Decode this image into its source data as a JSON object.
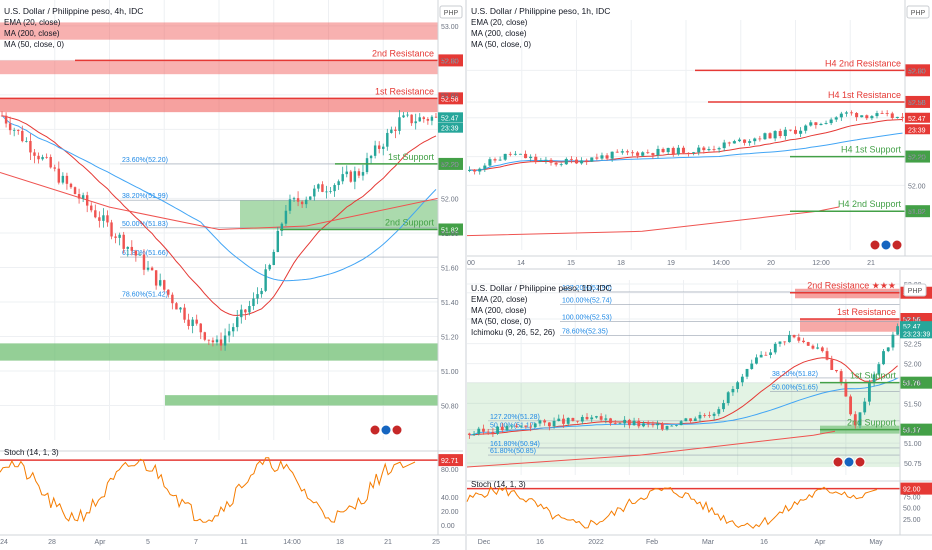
{
  "colors": {
    "resistance": "#e53935",
    "resistance_zone": "#ef5350",
    "support": "#43a047",
    "support_zone": "#66bb6a",
    "ema": "#e53935",
    "ma200": "#ef5350",
    "ma50": "#42a5f5",
    "stoch": "#f57c00",
    "candle_up": "#26a69a",
    "candle_down": "#ef5350",
    "grid": "#eef0f3",
    "fib_text": "#1e88e5"
  },
  "panels": [
    {
      "title": "U.S. Dollar / Philippine peso, 4h, IDC",
      "indicators": [
        "EMA (20, close)",
        "MA (200, close)",
        "MA (50, close, 0)"
      ],
      "currency": "PHP",
      "chart_data": {
        "type": "candlestick",
        "ylim": [
          50.6,
          53.15
        ],
        "y_ticks": [
          "53.00",
          "52.80",
          "52.60",
          "52.40",
          "52.20",
          "52.00",
          "51.80",
          "51.60",
          "51.40",
          "51.20",
          "51.00",
          "50.80"
        ],
        "x_ticks": [
          "24",
          "28",
          "Apr",
          "5",
          "7",
          "11",
          "14:00",
          "18",
          "21",
          "25"
        ],
        "n_bars": 108,
        "last_close": 52.47,
        "levels": [
          {
            "label": "2nd Resistance",
            "value": 52.8,
            "tag": "52.80",
            "kind": "resistance"
          },
          {
            "label": "1st Resistance",
            "value": 52.58,
            "tag": "52.58",
            "kind": "resistance"
          },
          {
            "label": "1st Support",
            "value": 52.2,
            "tag": "52.20",
            "kind": "support"
          },
          {
            "label": "2nd Support",
            "value": 51.82,
            "tag": "51.82",
            "kind": "support"
          }
        ],
        "fib_levels": [
          {
            "label": "23.60%(52.20)",
            "value": 52.2
          },
          {
            "label": "38.20%(51.99)",
            "value": 51.99
          },
          {
            "label": "50.00%(51.83)",
            "value": 51.83
          },
          {
            "label": "61.80%(51.66)",
            "value": 51.66
          },
          {
            "label": "78.60%(51.42)",
            "value": 51.42
          }
        ],
        "price_tags": [
          {
            "text": "52.47",
            "value": 52.47,
            "color": "#26a69a"
          },
          {
            "text": "23:39",
            "value": 52.41,
            "color": "#26a69a"
          }
        ],
        "stoch": {
          "label": "Stoch (14, 1, 3)",
          "ylim": [
            0,
            100
          ],
          "y_ticks": [
            "92.71",
            "80.00",
            "40.00",
            "20.00",
            "0.00"
          ],
          "level_tag": "92.71"
        }
      }
    },
    {
      "title": "U.S. Dollar / Philippine peso, 1h, IDC",
      "indicators": [
        "EMA (20, close)",
        "MA (200, close)",
        "MA (50, close, 0)"
      ],
      "currency": "PHP",
      "chart_data": {
        "type": "candlestick",
        "ylim": [
          51.55,
          53.15
        ],
        "y_ticks": [
          "52.80",
          "52.58",
          "52.47",
          "52.20",
          "52.00",
          "51.82"
        ],
        "x_ticks": [
          "00",
          "14",
          "15",
          "18",
          "19",
          "14:00",
          "20",
          "12:00",
          "21"
        ],
        "n_bars": 86,
        "last_close": 52.47,
        "levels": [
          {
            "label": "H4 2nd Resistance",
            "value": 52.8,
            "tag": "52.80",
            "kind": "resistance"
          },
          {
            "label": "H4 1st Resistance",
            "value": 52.58,
            "tag": "52.58",
            "kind": "resistance"
          },
          {
            "label": "H4 1st Support",
            "value": 52.2,
            "tag": "52.20",
            "kind": "support"
          },
          {
            "label": "H4 2nd Support",
            "value": 51.82,
            "tag": "51.82",
            "kind": "support"
          }
        ],
        "price_tags": [
          {
            "text": "52.47",
            "value": 52.47,
            "color": "#e53935"
          },
          {
            "text": "23:39",
            "value": 52.39,
            "color": "#e53935"
          }
        ]
      }
    },
    {
      "title": "U.S. Dollar / Philippine peso, 1D, IDC",
      "indicators": [
        "EMA (20, close)",
        "MA (200, close)",
        "MA (50, close, 0)",
        "Ichimoku (9, 26, 52, 26)"
      ],
      "currency": "PHP",
      "chart_data": {
        "type": "candlestick",
        "ylim": [
          50.6,
          53.05
        ],
        "y_ticks": [
          "53.00",
          "52.89",
          "52.56",
          "52.25",
          "52.00",
          "51.76",
          "51.50",
          "51.17",
          "51.00",
          "50.75"
        ],
        "x_ticks": [
          "Dec",
          "16",
          "2022",
          "Feb",
          "Mar",
          "16",
          "Apr",
          "May"
        ],
        "n_bars": 92,
        "last_close": 52.47,
        "levels": [
          {
            "label": "2nd Resistance ★★★",
            "value": 52.89,
            "tag": "52.89",
            "kind": "resistance"
          },
          {
            "label": "1st Resistance",
            "value": 52.56,
            "tag": "52.56",
            "kind": "resistance"
          },
          {
            "label": "1st Support",
            "value": 51.76,
            "tag": "51.76",
            "kind": "support"
          },
          {
            "label": "2nd Support",
            "value": 51.17,
            "tag": "51.17",
            "kind": "support"
          }
        ],
        "fib_levels": [
          {
            "label": "127.20%(52.90)",
            "value": 52.9
          },
          {
            "label": "100.00%(52.74)",
            "value": 52.74
          },
          {
            "label": "100.00%(52.53)",
            "value": 52.53
          },
          {
            "label": "78.60%(52.35)",
            "value": 52.35
          },
          {
            "label": "38.20%(51.82)",
            "value": 51.82
          },
          {
            "label": "50.00%(51.65)",
            "value": 51.65
          },
          {
            "label": "127.20%(51.28)",
            "value": 51.28
          },
          {
            "label": "50.00%(51.17)",
            "value": 51.17
          },
          {
            "label": "161.80%(50.94)",
            "value": 50.94
          },
          {
            "label": "61.80%(50.85)",
            "value": 50.85
          }
        ],
        "price_tags": [
          {
            "text": "52.47",
            "value": 52.47,
            "color": "#26a69a"
          },
          {
            "text": "23:23:39",
            "value": 52.38,
            "color": "#26a69a"
          }
        ],
        "stoch": {
          "label": "Stoch (14, 1, 3)",
          "ylim": [
            0,
            100
          ],
          "y_ticks": [
            "92.00",
            "75.00",
            "50.00",
            "25.00"
          ],
          "level_tag": "92.00"
        }
      }
    }
  ]
}
